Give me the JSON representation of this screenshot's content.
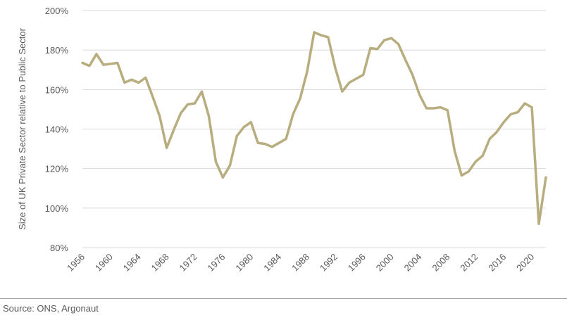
{
  "source": "Source: ONS, Argonaut",
  "chart_data": {
    "type": "line",
    "title": "",
    "xlabel": "",
    "ylabel": "Size of UK Private Sector relative to Public Sector",
    "x_ticks": [
      "1956",
      "1960",
      "1964",
      "1968",
      "1972",
      "1976",
      "1980",
      "1984",
      "1988",
      "1992",
      "1996",
      "2000",
      "2004",
      "2008",
      "2012",
      "2016",
      "2020"
    ],
    "y_ticks": [
      "80%",
      "100%",
      "120%",
      "140%",
      "160%",
      "180%",
      "200%"
    ],
    "ylim": [
      80,
      200
    ],
    "xlim": [
      1956,
      2022
    ],
    "grid": "horizontal",
    "legend": "none",
    "series": [
      {
        "color": "#b8ad7f",
        "x": [
          1956,
          1957,
          1958,
          1959,
          1960,
          1961,
          1962,
          1963,
          1964,
          1965,
          1966,
          1967,
          1968,
          1969,
          1970,
          1971,
          1972,
          1973,
          1974,
          1975,
          1976,
          1977,
          1978,
          1979,
          1980,
          1981,
          1982,
          1983,
          1984,
          1985,
          1986,
          1987,
          1988,
          1989,
          1990,
          1991,
          1992,
          1993,
          1994,
          1995,
          1996,
          1997,
          1998,
          1999,
          2000,
          2001,
          2002,
          2003,
          2004,
          2005,
          2006,
          2007,
          2008,
          2009,
          2010,
          2011,
          2012,
          2013,
          2014,
          2015,
          2016,
          2017,
          2018,
          2019,
          2020,
          2021,
          2022
        ],
        "values": [
          173.5,
          172,
          178,
          172.5,
          173,
          173.5,
          163.5,
          165,
          163.5,
          166,
          156.5,
          146.5,
          130.5,
          139.5,
          148,
          152.5,
          153,
          159,
          146.5,
          123.5,
          115.5,
          121.5,
          136.5,
          141,
          143.5,
          133,
          132.5,
          131,
          133,
          135,
          147.5,
          155.5,
          169,
          189,
          187.5,
          186.5,
          171,
          159,
          163.5,
          165.5,
          167.5,
          181,
          180.5,
          185,
          186,
          183,
          175,
          167.5,
          157.5,
          150.5,
          150.5,
          151,
          149.5,
          129,
          116.5,
          118.5,
          123.5,
          126.5,
          135,
          138.5,
          143.5,
          147.5,
          148.5,
          153,
          151,
          92,
          115.5
        ]
      }
    ]
  }
}
